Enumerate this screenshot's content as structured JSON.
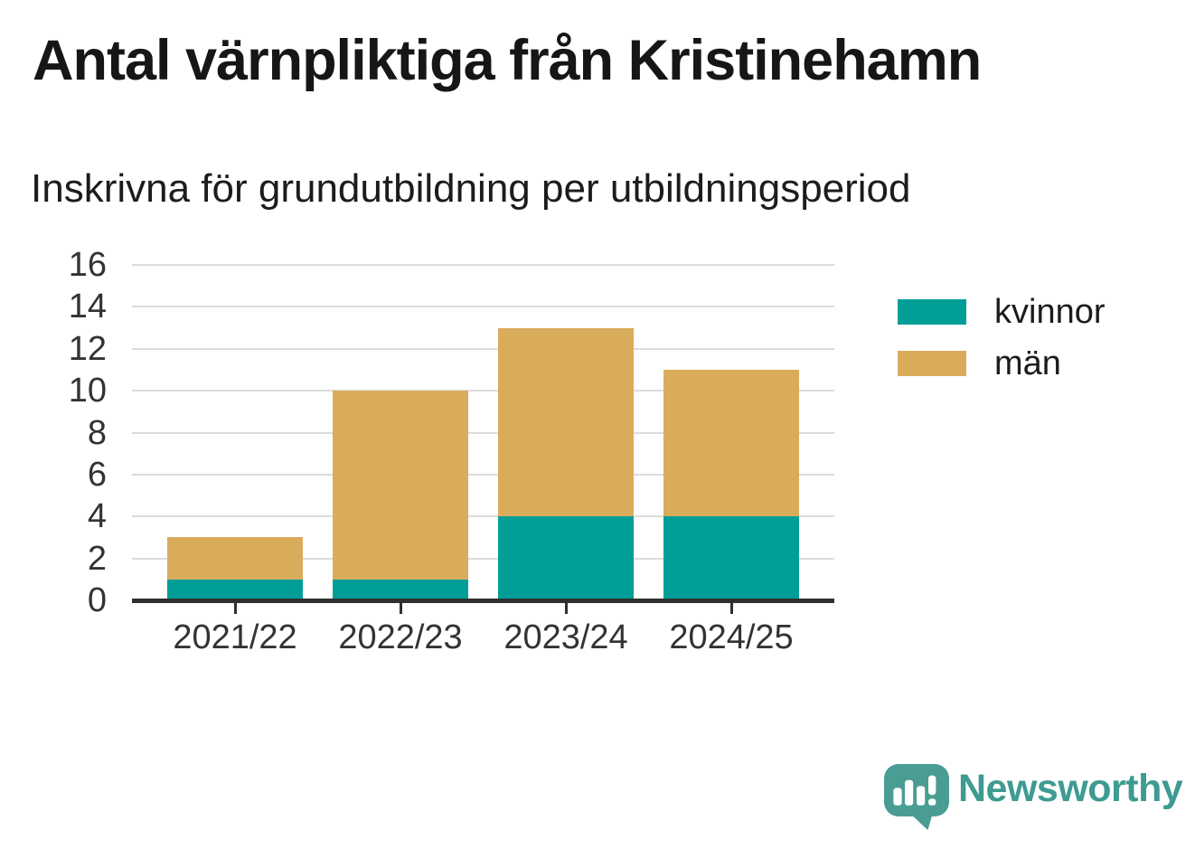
{
  "title": "Antal värnpliktiga från Kristinehamn",
  "subtitle": "Inskrivna för grundutbildning per utbildningsperiod",
  "chart_data": {
    "type": "bar",
    "stacked": true,
    "title": "Antal värnpliktiga från Kristinehamn",
    "subtitle": "Inskrivna för grundutbildning per utbildningsperiod",
    "categories": [
      "2021/22",
      "2022/23",
      "2023/24",
      "2024/25"
    ],
    "series": [
      {
        "name": "kvinnor",
        "color": "#009e96",
        "values": [
          1,
          1,
          4,
          4
        ]
      },
      {
        "name": "män",
        "color": "#d9ac5c",
        "values": [
          2,
          9,
          9,
          7
        ]
      }
    ],
    "totals": [
      3,
      10,
      13,
      11
    ],
    "ylim": [
      0,
      16
    ],
    "yticks": [
      0,
      2,
      4,
      6,
      8,
      10,
      12,
      14,
      16
    ],
    "xlabel": "",
    "ylabel": "",
    "grid": true,
    "legend_position": "right"
  },
  "colors": {
    "kvinnor": "#009e96",
    "man": "#d9ac5c",
    "grid": "#dcdcdc",
    "axis": "#2f2f2f",
    "tick_text": "#333333",
    "title_text": "#161616",
    "brand_text": "#3e9b91",
    "brand_icon": "#4a9d93"
  },
  "branding": {
    "name": "Newsworthy",
    "logo_icon": "speech-bubble-bar-chart-exclamation"
  }
}
